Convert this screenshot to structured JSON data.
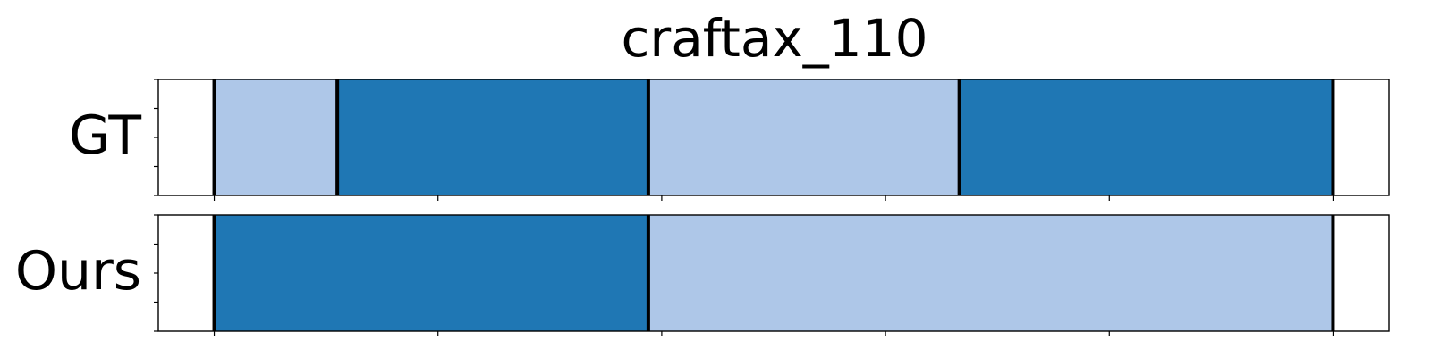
{
  "chart_data": {
    "type": "segmentation-timeline",
    "title": "craftax_110",
    "x_range": [
      -0.25,
      5.25
    ],
    "x_ticks": [
      0,
      1,
      2,
      3,
      4,
      5
    ],
    "tick_labels_visible": false,
    "colors": {
      "light": "#aec7e8",
      "dark": "#1f77b4",
      "boundary": "#000000",
      "frame": "#000000"
    },
    "rows": [
      {
        "label": "GT",
        "segments": [
          {
            "start": 0.0,
            "end": 0.55,
            "color": "light"
          },
          {
            "start": 0.55,
            "end": 1.94,
            "color": "dark"
          },
          {
            "start": 1.94,
            "end": 3.33,
            "color": "light"
          },
          {
            "start": 3.33,
            "end": 5.0,
            "color": "dark"
          }
        ],
        "boundaries": [
          0.0,
          0.55,
          1.94,
          3.33,
          5.0
        ]
      },
      {
        "label": "Ours",
        "segments": [
          {
            "start": 0.0,
            "end": 1.94,
            "color": "dark"
          },
          {
            "start": 1.94,
            "end": 5.0,
            "color": "light"
          }
        ],
        "boundaries": [
          0.0,
          1.94,
          5.0
        ]
      }
    ]
  }
}
